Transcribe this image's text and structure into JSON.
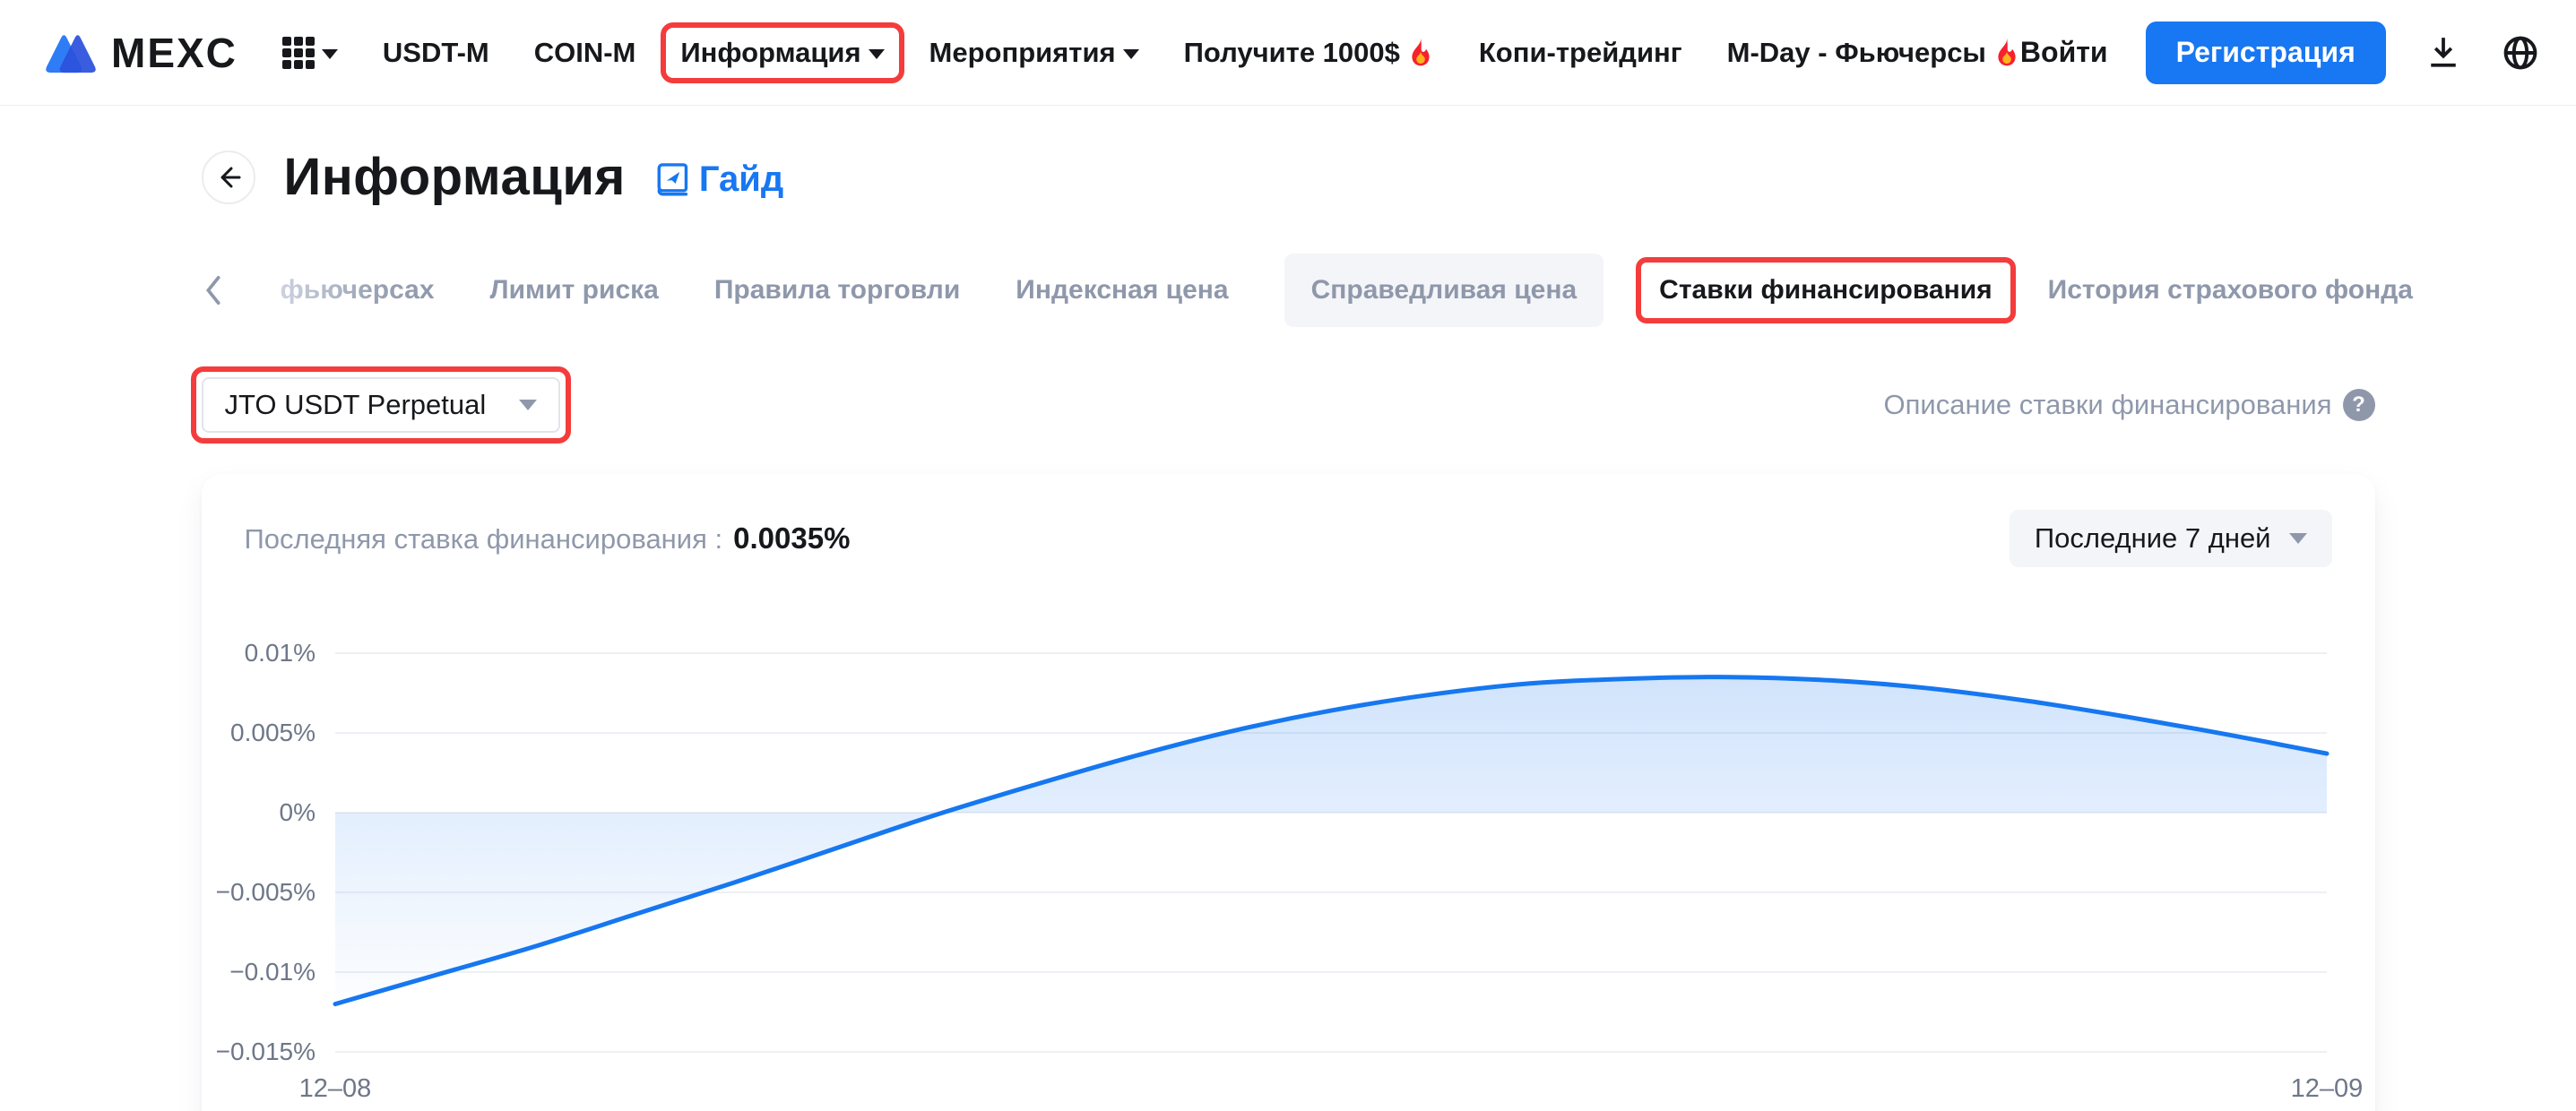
{
  "nav": {
    "logo_text": "MEXC",
    "items": [
      {
        "label": "USDT-M"
      },
      {
        "label": "COIN-M"
      },
      {
        "label": "Информация",
        "dropdown": true,
        "annotated": true
      },
      {
        "label": "Мероприятия",
        "dropdown": true
      },
      {
        "label": "Получите 1000$",
        "flame": true
      },
      {
        "label": "Копи-трейдинг"
      },
      {
        "label": "M-Day - Фьючерсы",
        "flame": true
      }
    ],
    "login_label": "Войти",
    "register_label": "Регистрация"
  },
  "page": {
    "title": "Информация",
    "guide_label": "Гайд"
  },
  "tabs": {
    "items": [
      {
        "label": "фьючерсах",
        "partial": true
      },
      {
        "label": "Лимит риска"
      },
      {
        "label": "Правила торговли"
      },
      {
        "label": "Индексная цена"
      },
      {
        "label": "Справедливая цена",
        "highlighted": true
      },
      {
        "label": "Ставки финансирования",
        "active": true,
        "annotated": true
      },
      {
        "label": "История страхового фонда"
      }
    ]
  },
  "controls": {
    "contract_select_value": "JTO USDT Perpetual",
    "help_link_label": "Описание ставки финансирования"
  },
  "panel": {
    "last_rate_label": "Последняя ставка финансирования :",
    "last_rate_value": "0.0035%",
    "range_select_value": "Последние 7 дней"
  },
  "chart_data": {
    "type": "area",
    "series_name": "Ставка финансирования",
    "x_labels": [
      "12–08",
      "12–09"
    ],
    "x_note": "x = доля интервала времени от 12-08 до 12-09 (0..1)",
    "y_tick_labels": [
      "0.01%",
      "0.005%",
      "0%",
      "−0.005%",
      "−0.01%",
      "−0.015%"
    ],
    "ylim": [
      -0.015,
      0.01
    ],
    "y_unit": "%",
    "grid": true,
    "legend": false,
    "line_color": "#1677f0",
    "fill_color": "#1877f2",
    "points": [
      [
        0.0,
        -0.012
      ],
      [
        0.05,
        -0.0102
      ],
      [
        0.1,
        -0.0084
      ],
      [
        0.15,
        -0.0064
      ],
      [
        0.2,
        -0.0044
      ],
      [
        0.25,
        -0.0023
      ],
      [
        0.3,
        -0.0002
      ],
      [
        0.35,
        0.0017
      ],
      [
        0.4,
        0.0035
      ],
      [
        0.45,
        0.0051
      ],
      [
        0.5,
        0.0064
      ],
      [
        0.55,
        0.0074
      ],
      [
        0.6,
        0.0081
      ],
      [
        0.65,
        0.0084
      ],
      [
        0.7,
        0.0085
      ],
      [
        0.75,
        0.0083
      ],
      [
        0.8,
        0.0078
      ],
      [
        0.85,
        0.007
      ],
      [
        0.9,
        0.006
      ],
      [
        0.95,
        0.0049
      ],
      [
        1.0,
        0.0037
      ]
    ]
  },
  "colors": {
    "accent_blue": "#1877f2",
    "chart_line": "#1677f0",
    "annotation_red": "#f43c3c",
    "muted_text": "#8f98ab",
    "axis_text": "#6e7788",
    "gridline": "#edf0f4"
  }
}
